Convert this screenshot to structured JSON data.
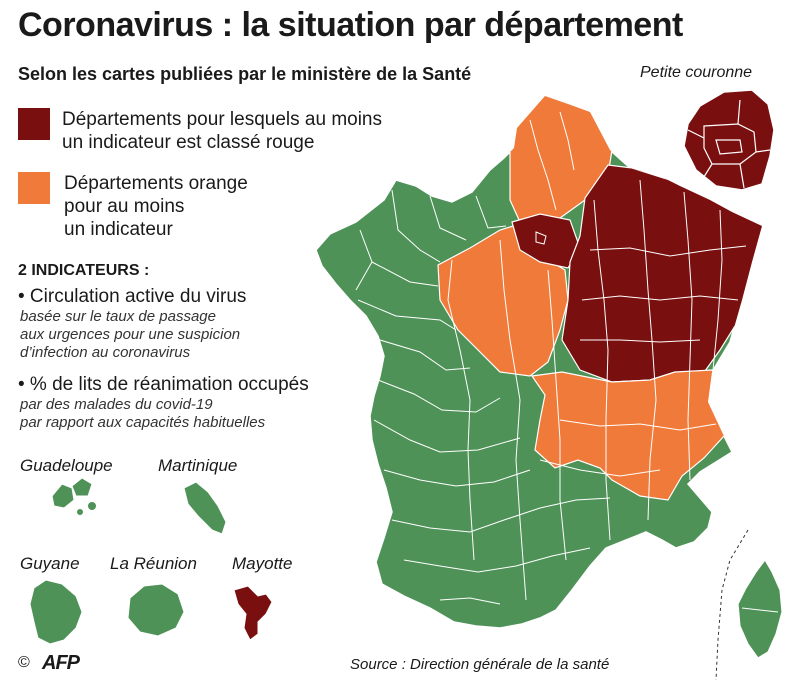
{
  "title": "Coronavirus : la situation par département",
  "subtitle": "Selon les cartes publiées par le ministère de la Santé",
  "inset_label": "Petite couronne",
  "colors": {
    "red": "#7a0f10",
    "orange": "#f07a39",
    "green": "#4e9258",
    "border": "#ffffff"
  },
  "legend": {
    "red_line1": "Départements pour lesquels au moins",
    "red_line2": "un indicateur est classé rouge",
    "orange_line1": "Départements orange",
    "orange_line2": "pour au moins",
    "orange_line3": "un indicateur"
  },
  "indicators": {
    "heading": "2 INDICATEURS :",
    "items": [
      {
        "title": "• Circulation active du virus",
        "lines": [
          "basée sur le taux de passage",
          "aux urgences pour une suspicion",
          "d’infection au coronavirus"
        ]
      },
      {
        "title": "• % de lits de réanimation occupés",
        "lines": [
          "par des malades du covid-19",
          "par rapport aux capacités habituelles"
        ]
      }
    ]
  },
  "territories": [
    {
      "name": "Guadeloupe",
      "status": "green"
    },
    {
      "name": "Martinique",
      "status": "green"
    },
    {
      "name": "Guyane",
      "status": "green"
    },
    {
      "name": "La Réunion",
      "status": "green"
    },
    {
      "name": "Mayotte",
      "status": "red"
    }
  ],
  "footer": {
    "copyright": "©",
    "agency": "AFP",
    "source": "Source : Direction générale de la santé"
  }
}
